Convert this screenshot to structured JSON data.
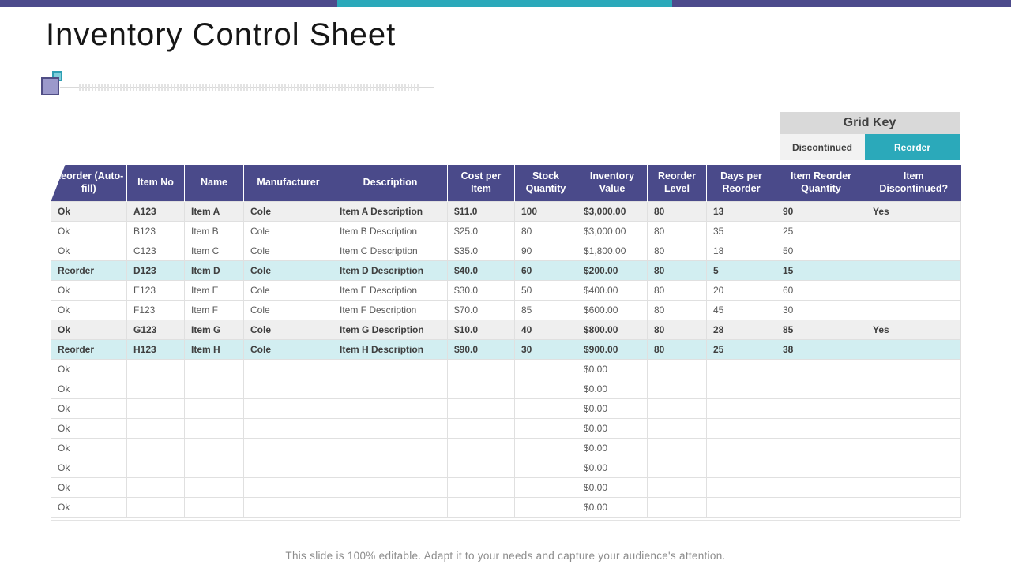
{
  "slide": {
    "title": "Inventory Control Sheet",
    "footer": "This slide is 100% editable. Adapt it to your needs and capture your audience's attention."
  },
  "colors": {
    "accent_purple": "#4D4B8C",
    "accent_teal": "#2BA9BA",
    "table_header_bg": "#4A4A8A",
    "discontinued_row_bg": "#EFEFEF",
    "reorder_row_bg": "#D2EEF1",
    "grid_key_title_bg": "#D9D9D9"
  },
  "grid_key": {
    "title": "Grid Key",
    "discontinued_label": "Discontinued",
    "reorder_label": "Reorder"
  },
  "table": {
    "columns": [
      "Reorder (Auto-fill)",
      "Item No",
      "Name",
      "Manufacturer",
      "Description",
      "Cost per Item",
      "Stock Quantity",
      "Inventory Value",
      "Reorder Level",
      "Days per Reorder",
      "Item Reorder Quantity",
      "Item Discontinued?"
    ],
    "rows": [
      {
        "highlight": "discontinued",
        "cells": [
          "Ok",
          "A123",
          "Item A",
          "Cole",
          "Item A Description",
          "$11.0",
          "100",
          "$3,000.00",
          "80",
          "13",
          "90",
          "Yes"
        ]
      },
      {
        "highlight": "none",
        "cells": [
          "Ok",
          "B123",
          "Item B",
          "Cole",
          "Item B Description",
          "$25.0",
          "80",
          "$3,000.00",
          "80",
          "35",
          "25",
          ""
        ]
      },
      {
        "highlight": "none",
        "cells": [
          "Ok",
          "C123",
          "Item C",
          "Cole",
          "Item C Description",
          "$35.0",
          "90",
          "$1,800.00",
          "80",
          "18",
          "50",
          ""
        ]
      },
      {
        "highlight": "reorder",
        "cells": [
          "Reorder",
          "D123",
          "Item D",
          "Cole",
          "Item D Description",
          "$40.0",
          "60",
          "$200.00",
          "80",
          "5",
          "15",
          ""
        ]
      },
      {
        "highlight": "none",
        "cells": [
          "Ok",
          "E123",
          "Item E",
          "Cole",
          "Item E Description",
          "$30.0",
          "50",
          "$400.00",
          "80",
          "20",
          "60",
          ""
        ]
      },
      {
        "highlight": "none",
        "cells": [
          "Ok",
          "F123",
          "Item F",
          "Cole",
          "Item F Description",
          "$70.0",
          "85",
          "$600.00",
          "80",
          "45",
          "30",
          ""
        ]
      },
      {
        "highlight": "discontinued",
        "cells": [
          "Ok",
          "G123",
          "Item G",
          "Cole",
          "Item G Description",
          "$10.0",
          "40",
          "$800.00",
          "80",
          "28",
          "85",
          "Yes"
        ]
      },
      {
        "highlight": "reorder",
        "cells": [
          "Reorder",
          "H123",
          "Item H",
          "Cole",
          "Item H Description",
          "$90.0",
          "30",
          "$900.00",
          "80",
          "25",
          "38",
          ""
        ]
      },
      {
        "highlight": "none",
        "cells": [
          "Ok",
          "",
          "",
          "",
          "",
          "",
          "",
          "$0.00",
          "",
          "",
          "",
          ""
        ]
      },
      {
        "highlight": "none",
        "cells": [
          "Ok",
          "",
          "",
          "",
          "",
          "",
          "",
          "$0.00",
          "",
          "",
          "",
          ""
        ]
      },
      {
        "highlight": "none",
        "cells": [
          "Ok",
          "",
          "",
          "",
          "",
          "",
          "",
          "$0.00",
          "",
          "",
          "",
          ""
        ]
      },
      {
        "highlight": "none",
        "cells": [
          "Ok",
          "",
          "",
          "",
          "",
          "",
          "",
          "$0.00",
          "",
          "",
          "",
          ""
        ]
      },
      {
        "highlight": "none",
        "cells": [
          "Ok",
          "",
          "",
          "",
          "",
          "",
          "",
          "$0.00",
          "",
          "",
          "",
          ""
        ]
      },
      {
        "highlight": "none",
        "cells": [
          "Ok",
          "",
          "",
          "",
          "",
          "",
          "",
          "$0.00",
          "",
          "",
          "",
          ""
        ]
      },
      {
        "highlight": "none",
        "cells": [
          "Ok",
          "",
          "",
          "",
          "",
          "",
          "",
          "$0.00",
          "",
          "",
          "",
          ""
        ]
      },
      {
        "highlight": "none",
        "cells": [
          "Ok",
          "",
          "",
          "",
          "",
          "",
          "",
          "$0.00",
          "",
          "",
          "",
          ""
        ]
      }
    ]
  }
}
